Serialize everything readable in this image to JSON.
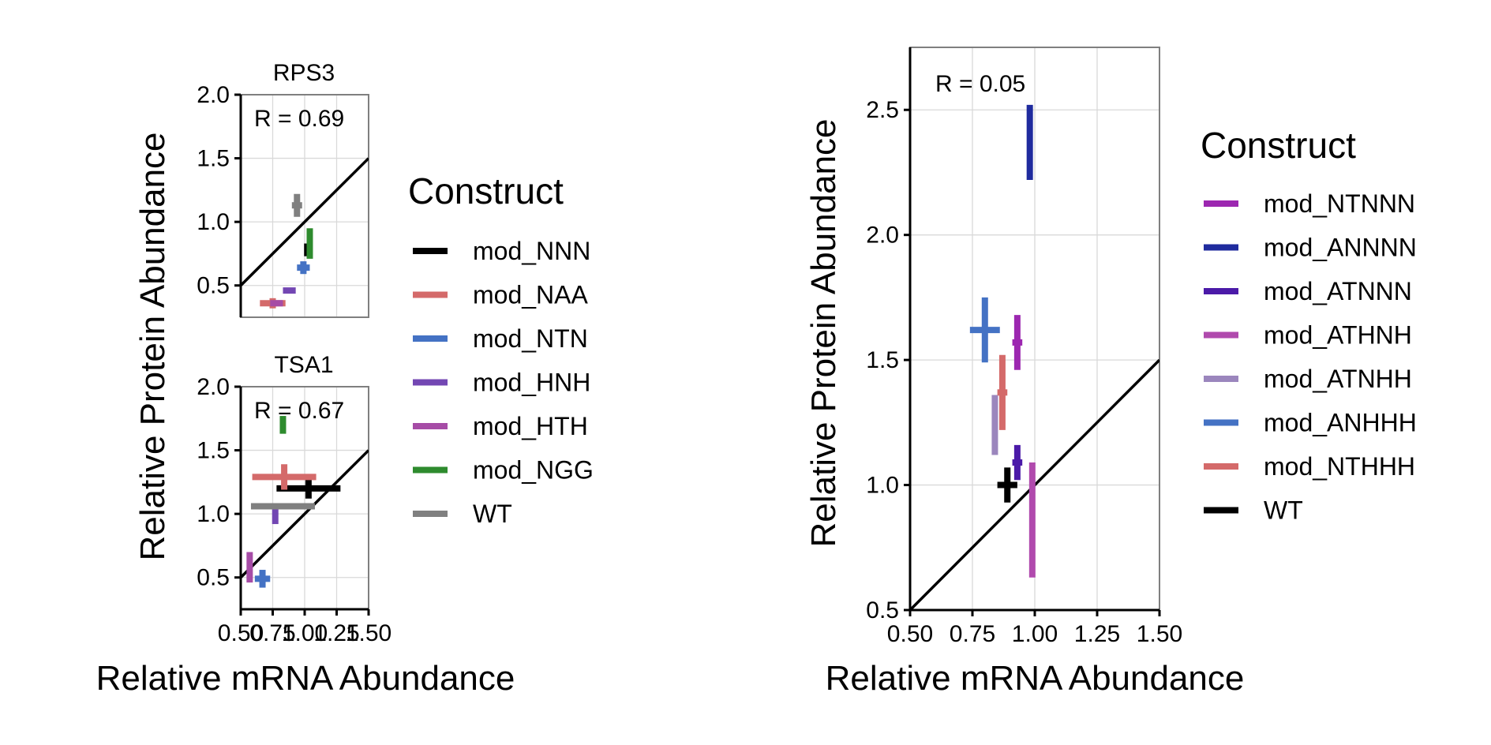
{
  "chart_data": [
    {
      "type": "scatter",
      "panel": "RPS3",
      "title": "RPS3",
      "annotation": "R = 0.69",
      "ylabel": "Relative Protein Abundance",
      "xlim": [
        0.5,
        1.5
      ],
      "ylim": [
        0.25,
        2.0
      ],
      "yticks": [
        "0.5",
        "1.0",
        "1.5",
        "2.0"
      ],
      "reference_line": "y = x",
      "grid": true,
      "series": [
        {
          "name": "mod_NNN",
          "color": "#000000",
          "x": 1.02,
          "y": 0.78,
          "xerr": 0.01,
          "yerr": 0.05
        },
        {
          "name": "mod_NAA",
          "color": "#d46a6a",
          "x": 0.75,
          "y": 0.36,
          "xerr": 0.1,
          "yerr": 0.04
        },
        {
          "name": "mod_NTN",
          "color": "#4472c4",
          "x": 0.99,
          "y": 0.64,
          "xerr": 0.05,
          "yerr": 0.05
        },
        {
          "name": "mod_HNH",
          "color": "#7347b3",
          "x": 0.88,
          "y": 0.46,
          "xerr": 0.05,
          "yerr": 0.02
        },
        {
          "name": "mod_HTH",
          "color": "#a64ca6",
          "x": 0.78,
          "y": 0.36,
          "xerr": 0.05,
          "yerr": 0.02
        },
        {
          "name": "mod_NGG",
          "color": "#2e8b2e",
          "x": 1.04,
          "y": 0.83,
          "xerr": 0.01,
          "yerr": 0.12
        },
        {
          "name": "WT",
          "color": "#808080",
          "x": 0.94,
          "y": 1.13,
          "xerr": 0.04,
          "yerr": 0.09
        }
      ]
    },
    {
      "type": "scatter",
      "panel": "TSA1",
      "title": "TSA1",
      "annotation": "R = 0.67",
      "ylabel": "Relative Protein Abundance",
      "xlabel": "Relative mRNA Abundance",
      "xlim": [
        0.5,
        1.5
      ],
      "ylim": [
        0.25,
        2.0
      ],
      "xticks": [
        "0.50",
        "0.75",
        "1.00",
        "1.25",
        "1.50"
      ],
      "yticks": [
        "0.5",
        "1.0",
        "1.5",
        "2.0"
      ],
      "reference_line": "y = x",
      "grid": true,
      "series": [
        {
          "name": "mod_NNN",
          "color": "#000000",
          "x": 1.03,
          "y": 1.2,
          "xerr": 0.25,
          "yerr": 0.08
        },
        {
          "name": "mod_NAA",
          "color": "#d46a6a",
          "x": 0.84,
          "y": 1.29,
          "xerr": 0.25,
          "yerr": 0.1
        },
        {
          "name": "mod_NTN",
          "color": "#4472c4",
          "x": 0.67,
          "y": 0.49,
          "xerr": 0.06,
          "yerr": 0.07
        },
        {
          "name": "mod_HNH",
          "color": "#7347b3",
          "x": 0.77,
          "y": 0.98,
          "xerr": 0.02,
          "yerr": 0.06
        },
        {
          "name": "mod_HTH",
          "color": "#a64ca6",
          "x": 0.57,
          "y": 0.58,
          "xerr": 0.01,
          "yerr": 0.12
        },
        {
          "name": "mod_NGG",
          "color": "#2e8b2e",
          "x": 0.83,
          "y": 1.7,
          "xerr": 0.01,
          "yerr": 0.07
        },
        {
          "name": "WT",
          "color": "#808080",
          "x": 0.83,
          "y": 1.06,
          "xerr": 0.25,
          "yerr": 0.02
        }
      ]
    },
    {
      "type": "scatter",
      "panel": "right",
      "annotation": "R = 0.05",
      "ylabel": "Relative Protein Abundance",
      "xlabel": "Relative mRNA Abundance",
      "xlim": [
        0.5,
        1.5
      ],
      "ylim": [
        0.5,
        2.75
      ],
      "xticks": [
        "0.50",
        "0.75",
        "1.00",
        "1.25",
        "1.50"
      ],
      "yticks": [
        "0.5",
        "1.0",
        "1.5",
        "2.0",
        "2.5"
      ],
      "reference_line": "y = x",
      "grid": true,
      "series": [
        {
          "name": "mod_NTNNN",
          "color": "#9c27b0",
          "x": 0.93,
          "y": 1.57,
          "xerr": 0.02,
          "yerr": 0.11
        },
        {
          "name": "mod_ANNNN",
          "color": "#1f2b9e",
          "x": 0.98,
          "y": 2.37,
          "xerr": 0.005,
          "yerr": 0.15
        },
        {
          "name": "mod_ATNNN",
          "color": "#4b1aa8",
          "x": 0.93,
          "y": 1.09,
          "xerr": 0.02,
          "yerr": 0.07
        },
        {
          "name": "mod_ATHNH",
          "color": "#b04aad",
          "x": 0.99,
          "y": 0.86,
          "xerr": 0.01,
          "yerr": 0.23
        },
        {
          "name": "mod_ATNHH",
          "color": "#9b86bd",
          "x": 0.84,
          "y": 1.24,
          "xerr": 0.01,
          "yerr": 0.12
        },
        {
          "name": "mod_ANHHH",
          "color": "#4472c4",
          "x": 0.8,
          "y": 1.62,
          "xerr": 0.06,
          "yerr": 0.13
        },
        {
          "name": "mod_NTHHH",
          "color": "#d46a6a",
          "x": 0.87,
          "y": 1.37,
          "xerr": 0.02,
          "yerr": 0.15
        },
        {
          "name": "WT",
          "color": "#000000",
          "x": 0.89,
          "y": 1.0,
          "xerr": 0.04,
          "yerr": 0.07
        }
      ]
    }
  ],
  "legends": {
    "left": {
      "title": "Construct",
      "items": [
        {
          "label": "mod_NNN",
          "color": "#000000"
        },
        {
          "label": "mod_NAA",
          "color": "#d46a6a"
        },
        {
          "label": "mod_NTN",
          "color": "#4472c4"
        },
        {
          "label": "mod_HNH",
          "color": "#7347b3"
        },
        {
          "label": "mod_HTH",
          "color": "#a64ca6"
        },
        {
          "label": "mod_NGG",
          "color": "#2e8b2e"
        },
        {
          "label": "WT",
          "color": "#808080"
        }
      ]
    },
    "right": {
      "title": "Construct",
      "items": [
        {
          "label": "mod_NTNNN",
          "color": "#9c27b0"
        },
        {
          "label": "mod_ANNNN",
          "color": "#1f2b9e"
        },
        {
          "label": "mod_ATNNN",
          "color": "#4b1aa8"
        },
        {
          "label": "mod_ATHNH",
          "color": "#b04aad"
        },
        {
          "label": "mod_ATNHH",
          "color": "#9b86bd"
        },
        {
          "label": "mod_ANHHH",
          "color": "#4472c4"
        },
        {
          "label": "mod_NTHHH",
          "color": "#d46a6a"
        },
        {
          "label": "WT",
          "color": "#000000"
        }
      ]
    }
  },
  "labels": {
    "left_ylabel": "Relative Protein Abundance",
    "left_xlabel": "Relative mRNA Abundance",
    "right_ylabel": "Relative Protein Abundance",
    "right_xlabel": "Relative mRNA Abundance"
  }
}
